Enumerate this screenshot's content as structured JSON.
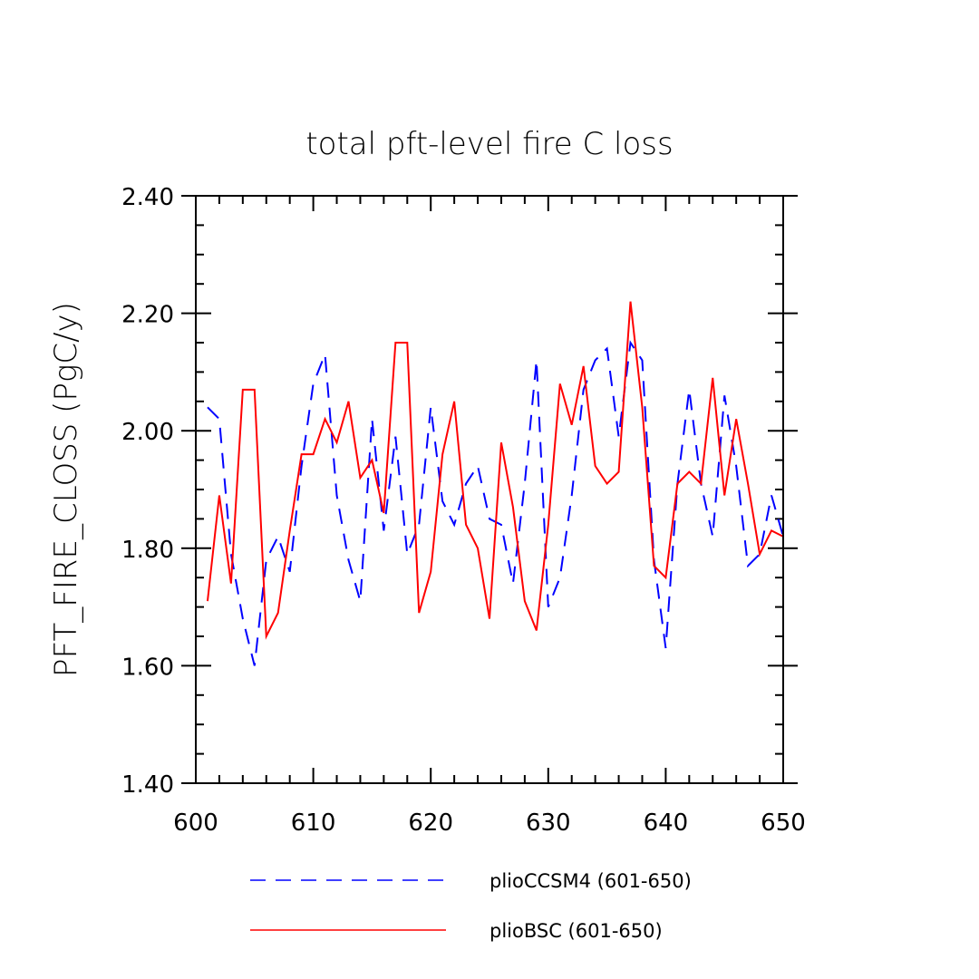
{
  "chart_data": {
    "type": "line",
    "title": "total pft-level fire C loss",
    "xlabel": "",
    "ylabel": "PFT_FIRE_CLOSS  (PgC/y)",
    "xlim": [
      600,
      650
    ],
    "ylim": [
      1.4,
      2.4
    ],
    "xticks": [
      600,
      610,
      620,
      630,
      640,
      650
    ],
    "xtick_labels": [
      "600",
      "610",
      "620",
      "630",
      "640",
      "650"
    ],
    "yticks": [
      1.4,
      1.6,
      1.8,
      2.0,
      2.2,
      2.4
    ],
    "ytick_labels": [
      "1.40",
      "1.60",
      "1.80",
      "2.00",
      "2.20",
      "2.40"
    ],
    "x": [
      601,
      602,
      603,
      604,
      605,
      606,
      607,
      608,
      609,
      610,
      611,
      612,
      613,
      614,
      615,
      616,
      617,
      618,
      619,
      620,
      621,
      622,
      623,
      624,
      625,
      626,
      627,
      628,
      629,
      630,
      631,
      632,
      633,
      634,
      635,
      636,
      637,
      638,
      639,
      640,
      641,
      642,
      643,
      644,
      645,
      646,
      647,
      648,
      649,
      650
    ],
    "series": [
      {
        "name": "pliocCSM4",
        "legend_label": "plioCCSM4 (601-650)",
        "color": "#0000ff",
        "style": "dashed",
        "values": [
          2.04,
          2.02,
          1.79,
          1.68,
          1.6,
          1.78,
          1.82,
          1.76,
          1.94,
          2.08,
          2.13,
          1.89,
          1.78,
          1.71,
          2.02,
          1.83,
          1.99,
          1.79,
          1.84,
          2.04,
          1.88,
          1.84,
          1.91,
          1.94,
          1.85,
          1.84,
          1.74,
          1.91,
          2.12,
          1.7,
          1.75,
          1.89,
          2.07,
          2.12,
          2.14,
          1.99,
          2.15,
          2.12,
          1.78,
          1.63,
          1.91,
          2.07,
          1.91,
          1.82,
          2.06,
          1.94,
          1.77,
          1.79,
          1.89,
          1.82
        ]
      },
      {
        "name": "plioBSC",
        "legend_label": "plioBSC (601-650)",
        "color": "#ff0000",
        "style": "solid",
        "values": [
          1.71,
          1.89,
          1.74,
          2.07,
          2.07,
          1.65,
          1.69,
          1.83,
          1.96,
          1.96,
          2.02,
          1.98,
          2.05,
          1.92,
          1.95,
          1.86,
          2.15,
          2.15,
          1.69,
          1.76,
          1.96,
          2.05,
          1.84,
          1.8,
          1.68,
          1.98,
          1.87,
          1.71,
          1.66,
          1.84,
          2.08,
          2.01,
          2.11,
          1.94,
          1.91,
          1.93,
          2.22,
          2.04,
          1.77,
          1.75,
          1.91,
          1.93,
          1.91,
          2.09,
          1.89,
          2.02,
          1.91,
          1.79,
          1.83,
          1.82
        ]
      }
    ],
    "legend_position": "bottom"
  }
}
